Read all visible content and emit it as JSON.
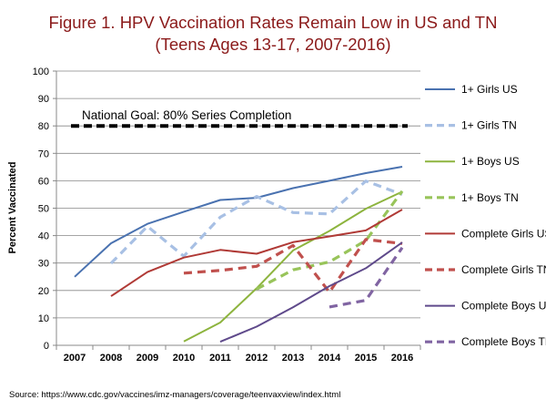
{
  "chart_data": {
    "type": "line",
    "title": "Figure 1. HPV Vaccination Rates Remain Low in US and TN",
    "subtitle": "(Teens Ages 13-17, 2007-2016)",
    "ylabel": "Percent Vaccinated",
    "xlabel": "",
    "ylim": [
      0,
      100
    ],
    "yticks": [
      0,
      10,
      20,
      30,
      40,
      50,
      60,
      70,
      80,
      90,
      100
    ],
    "x": [
      "2007",
      "2008",
      "2009",
      "2010",
      "2011",
      "2012",
      "2013",
      "2014",
      "2015",
      "2016"
    ],
    "grid": true,
    "legend_position": "right",
    "annotation": {
      "label": "National Goal: 80% Series Completion",
      "value": 80
    },
    "series": [
      {
        "name": "1+ Girls US",
        "color": "#4a72b0",
        "dashed": false,
        "values": [
          25,
          37.2,
          44.3,
          48.7,
          53,
          53.8,
          57.3,
          60,
          62.8,
          65.1
        ]
      },
      {
        "name": "1+ Girls TN",
        "color": "#a8c0e4",
        "dashed": true,
        "values": [
          null,
          29.9,
          43.4,
          32.5,
          46.7,
          54.3,
          48.4,
          47.9,
          59.9,
          55
        ]
      },
      {
        "name": "1+ Boys US",
        "color": "#8db43e",
        "dashed": false,
        "values": [
          null,
          null,
          null,
          1.4,
          8.3,
          20.8,
          34.6,
          41.7,
          49.8,
          56
        ]
      },
      {
        "name": "1+ Boys TN",
        "color": "#98c45a",
        "dashed": true,
        "values": [
          null,
          null,
          null,
          null,
          null,
          20.5,
          27.5,
          30.4,
          38.2,
          56.2
        ]
      },
      {
        "name": "Complete Girls US",
        "color": "#b03a36",
        "dashed": false,
        "values": [
          null,
          17.9,
          26.7,
          32,
          34.8,
          33.4,
          37.6,
          39.7,
          41.9,
          49.5
        ]
      },
      {
        "name": "Complete Girls TN",
        "color": "#c0504d",
        "dashed": true,
        "values": [
          null,
          null,
          null,
          26.3,
          27.3,
          28.8,
          36.4,
          19.4,
          38.6,
          37.1
        ]
      },
      {
        "name": "Complete Boys US",
        "color": "#5f4a8b",
        "dashed": false,
        "values": [
          null,
          null,
          null,
          null,
          1.3,
          6.8,
          13.9,
          21.6,
          28.1,
          37.5
        ]
      },
      {
        "name": "Complete Boys TN",
        "color": "#8064a2",
        "dashed": true,
        "values": [
          null,
          null,
          null,
          null,
          null,
          null,
          null,
          14,
          16.4,
          35.6
        ]
      }
    ]
  },
  "source": "Source: https://www.cdc.gov/vaccines/imz-managers/coverage/teenvaxview/index.html"
}
